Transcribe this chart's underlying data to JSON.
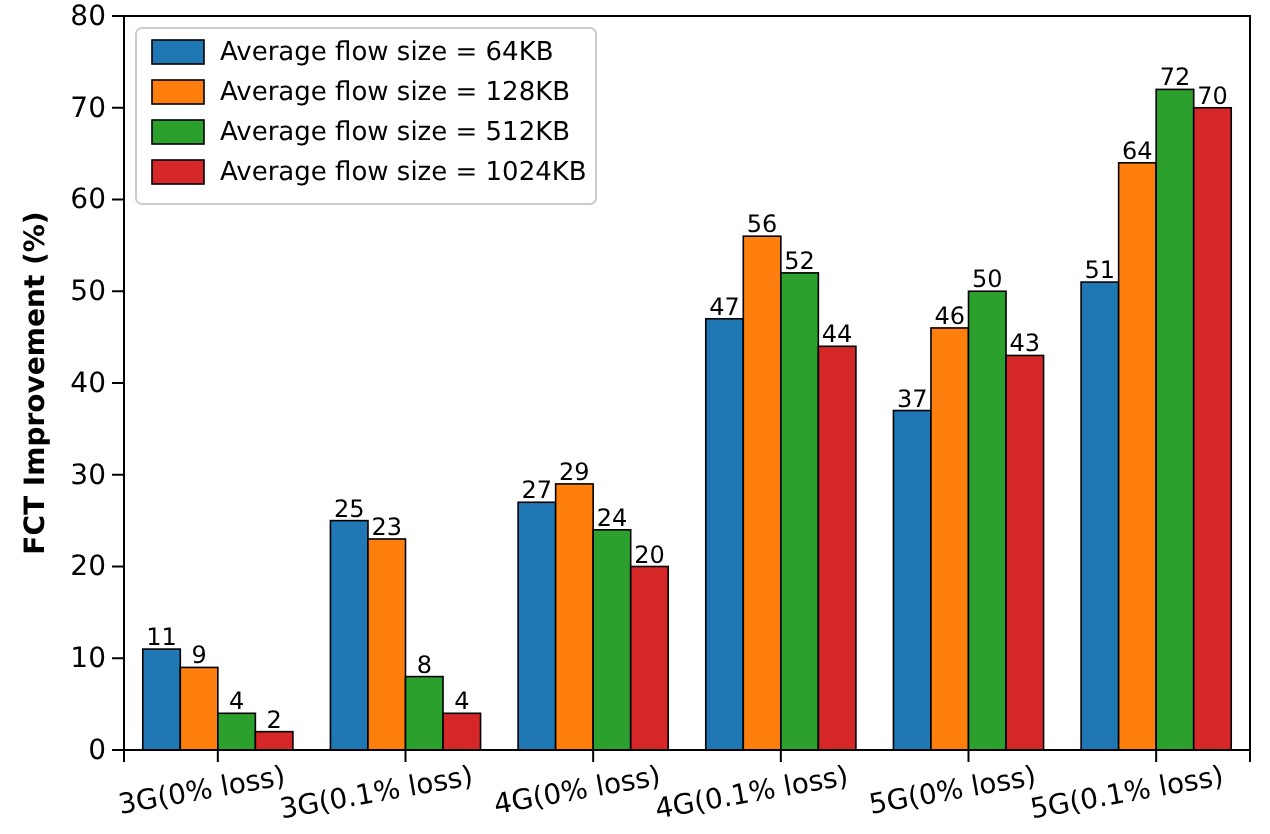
{
  "chart_data": {
    "type": "bar",
    "ylabel": "FCT Improvement (%)",
    "categories": [
      "3G(0% loss)",
      "3G(0.1% loss)",
      "4G(0% loss)",
      "4G(0.1% loss)",
      "5G(0% loss)",
      "5G(0.1% loss)"
    ],
    "series": [
      {
        "name": "Average flow size = 64KB",
        "color": "#1f77b4",
        "values": [
          11,
          25,
          27,
          47,
          37,
          51
        ]
      },
      {
        "name": "Average flow size = 128KB",
        "color": "#ff7f0e",
        "values": [
          9,
          23,
          29,
          56,
          46,
          64
        ]
      },
      {
        "name": "Average flow size = 512KB",
        "color": "#2ca02c",
        "values": [
          4,
          8,
          24,
          52,
          50,
          72
        ]
      },
      {
        "name": "Average flow size = 1024KB",
        "color": "#d62728",
        "values": [
          2,
          4,
          20,
          44,
          43,
          70
        ]
      }
    ],
    "ylim": [
      0,
      80
    ],
    "yticks": [
      0,
      10,
      20,
      30,
      40,
      50,
      60,
      70,
      80
    ],
    "data_labels": true,
    "legend": "top left",
    "grid": false
  }
}
